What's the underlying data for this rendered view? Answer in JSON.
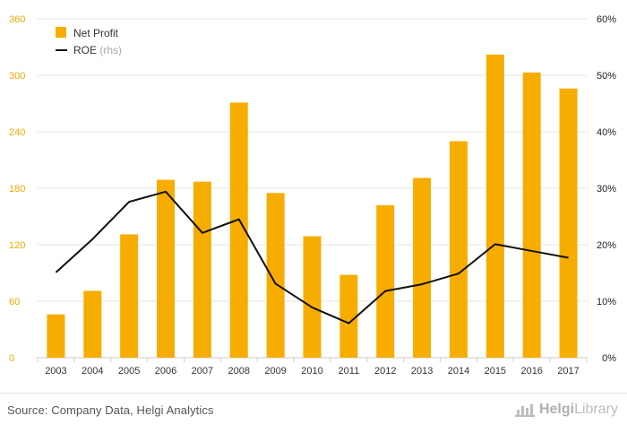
{
  "colors": {
    "bar": "#f7ad00",
    "line": "#111111",
    "left_axis": "#f0a800",
    "grid": "#e6e6e6",
    "text": "#444444"
  },
  "chart_data": {
    "type": "bar",
    "categories": [
      "2003",
      "2004",
      "2005",
      "2006",
      "2007",
      "2008",
      "2009",
      "2010",
      "2011",
      "2012",
      "2013",
      "2014",
      "2015",
      "2016",
      "2017"
    ],
    "series": [
      {
        "name": "Net Profit",
        "type": "bar",
        "axis": "left",
        "values": [
          46,
          71,
          131,
          189,
          187,
          271,
          175,
          129,
          88,
          162,
          191,
          230,
          322,
          303,
          286
        ]
      },
      {
        "name": "ROE",
        "name_suffix": "(rhs)",
        "type": "line",
        "axis": "right",
        "values": [
          15.1,
          21.0,
          27.6,
          29.4,
          22.1,
          24.5,
          13.1,
          8.9,
          6.1,
          11.8,
          13.0,
          14.9,
          20.1,
          18.9,
          17.7
        ]
      }
    ],
    "ylim_left": [
      0,
      360
    ],
    "yticks_left": [
      "0",
      "60",
      "120",
      "180",
      "240",
      "300",
      "360"
    ],
    "ylim_right": [
      0,
      60
    ],
    "yticks_right": [
      "0%",
      "10%",
      "20%",
      "30%",
      "40%",
      "50%",
      "60%"
    ],
    "grid": true,
    "legend_position": "top-left"
  },
  "source": "Source: Company Data, Helgi Analytics",
  "logo": {
    "brand": "Helgi",
    "suffix": "Library",
    "icon": "helgi-library-logo-icon"
  }
}
